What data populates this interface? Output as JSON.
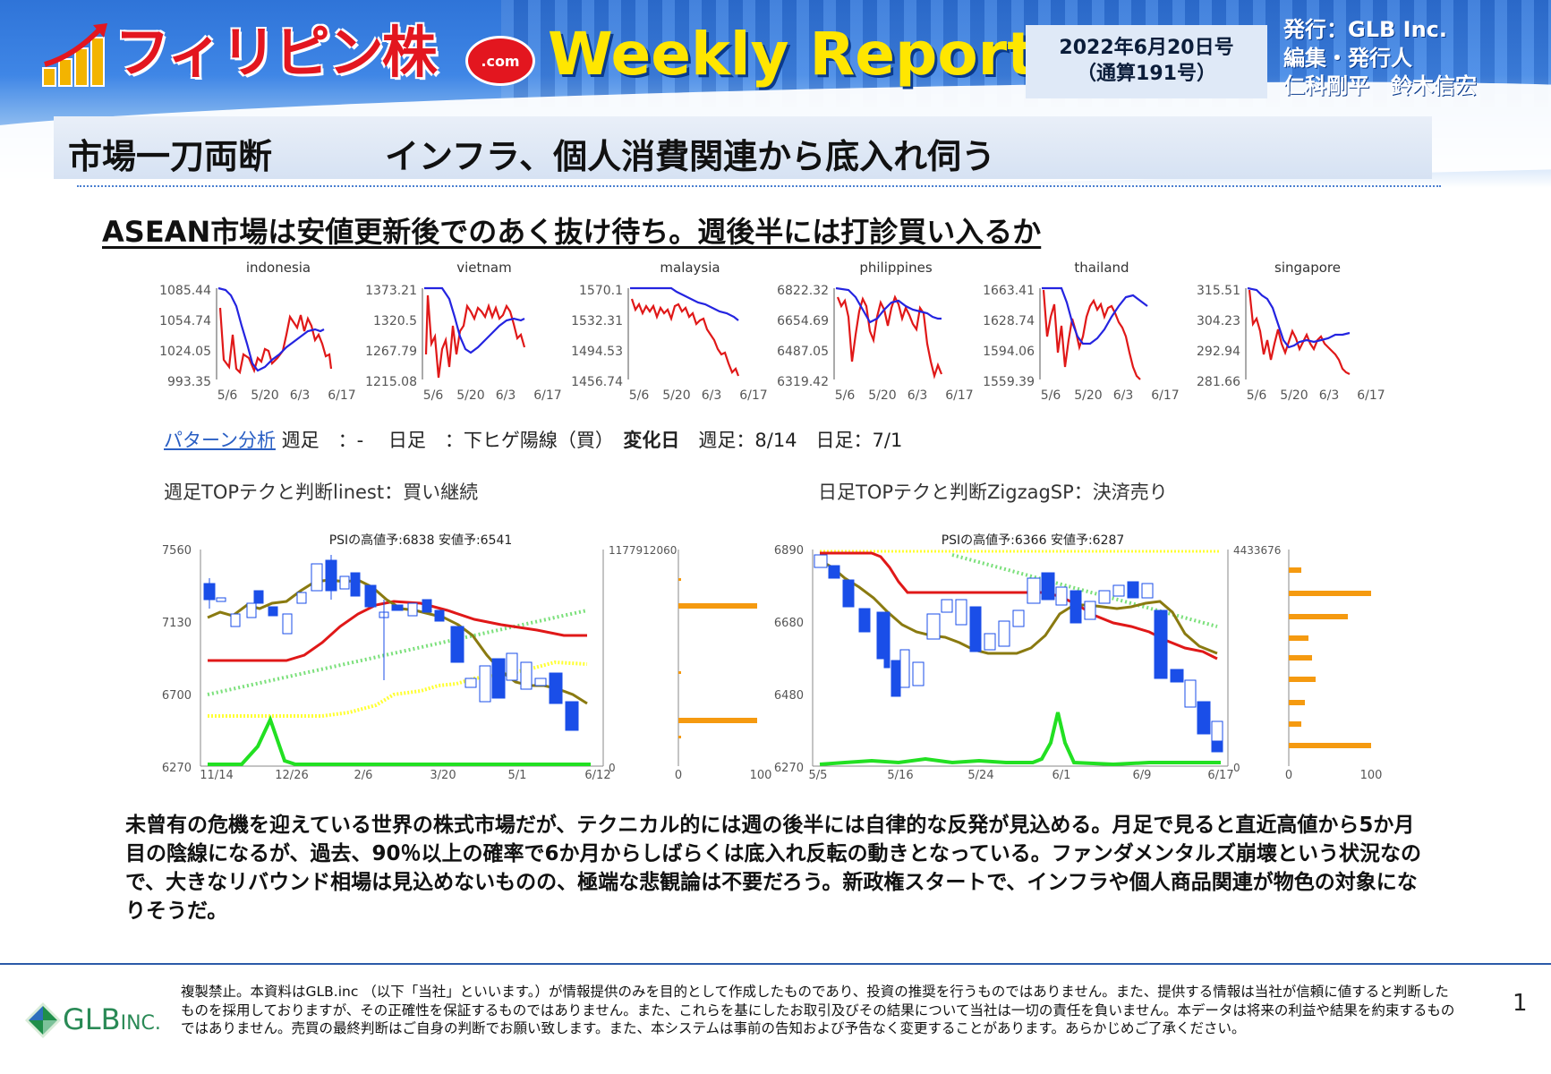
{
  "header": {
    "logo_text": "フィリピン株",
    "logo_badge": ".com",
    "report_title": "Weekly Report",
    "issue_date": "2022年6月20日号",
    "issue_number": "（通算191号）",
    "publisher_line": "発行：GLB Inc.",
    "editor_line": "編集・発行人",
    "editor_names": "仁科剛平　鈴木信宏"
  },
  "article": {
    "section_label": "市場一刀両断",
    "headline": "インフラ、個人消費関連から底入れ伺う",
    "subheadline": "ASEAN市場は安値更新後でのあく抜け待ち。週後半には打診買い入るか"
  },
  "mini_charts": [
    {
      "title": "indonesia",
      "yticks": [
        "1085.44",
        "1054.74",
        "1024.05",
        "993.35"
      ],
      "xticks": [
        "5/6",
        "5/20",
        "6/3",
        "6/17"
      ]
    },
    {
      "title": "vietnam",
      "yticks": [
        "1373.21",
        "1320.5",
        "1267.79",
        "1215.08"
      ],
      "xticks": [
        "5/6",
        "5/20",
        "6/3",
        "6/17"
      ]
    },
    {
      "title": "malaysia",
      "yticks": [
        "1570.1",
        "1532.31",
        "1494.53",
        "1456.74"
      ],
      "xticks": [
        "5/6",
        "5/20",
        "6/3",
        "6/17"
      ]
    },
    {
      "title": "philippines",
      "yticks": [
        "6822.32",
        "6654.69",
        "6487.05",
        "6319.42"
      ],
      "xticks": [
        "5/6",
        "5/20",
        "6/3",
        "6/17"
      ]
    },
    {
      "title": "thailand",
      "yticks": [
        "1663.41",
        "1628.74",
        "1594.06",
        "1559.39"
      ],
      "xticks": [
        "5/6",
        "5/20",
        "6/3",
        "6/17"
      ]
    },
    {
      "title": "singapore",
      "yticks": [
        "315.51",
        "304.23",
        "292.94",
        "281.66"
      ],
      "xticks": [
        "5/6",
        "5/20",
        "6/3",
        "6/17"
      ]
    }
  ],
  "pattern": {
    "link_text": "パターン分析",
    "weekly": " 週足　：-　 日足　：下ヒゲ陽線（買）　",
    "change_label": "変化日",
    "change_values": "　週足：8/14　日足：7/1"
  },
  "weekly_chart": {
    "label": "週足TOPテクと判断linest：買い継続",
    "title": "PSIの高値予:6838 安値予:6541",
    "yticks": [
      "7560",
      "7130",
      "6700",
      "6270"
    ],
    "xticks": [
      "11/14",
      "12/26",
      "2/6",
      "3/20",
      "5/1",
      "6/12"
    ],
    "volume_max": "1177912060",
    "volume_zero": "0",
    "hist_ticks": [
      "0",
      "100"
    ]
  },
  "daily_chart": {
    "label": "日足TOPテクと判断ZigzagSP：決済売り",
    "title": "PSIの高値予:6366 安値予:6287",
    "yticks": [
      "6890",
      "6680",
      "6480",
      "6270"
    ],
    "xticks": [
      "5/5",
      "5/16",
      "5/24",
      "6/1",
      "6/9",
      "6/17"
    ],
    "volume_max": "4433676",
    "volume_zero": "0",
    "hist_ticks": [
      "0",
      "100"
    ]
  },
  "body_text": "未曾有の危機を迎えている世界の株式市場だが、テクニカル的には週の後半には自律的な反発が見込める。月足で見ると直近高値から5か月目の陰線になるが、過去、90％以上の確率で6か月からしばらくは底入れ反転の動きとなっている。ファンダメンタルズ崩壊という状況なので、大きなリバウンド相場は見込めないものの、極端な悲観論は不要だろう。新政権スタートで、インフラや個人商品関連が物色の対象になりそうだ。",
  "footer": {
    "company_logo": "GLB",
    "company_logo_suffix": "INC.",
    "disclaimer": "複製禁止。本資料はGLB.inc （以下「当社」といいます。）が情報提供のみを目的として作成したものであり、投資の推奨を行うものではありません。また、提供する情報は当社が信頼に値すると判断したものを採用しておりますが、その正確性を保証するものではありません。また、これらを基にしたお取引及びその結果について当社は一切の責任を負いません。本データは将来の利益や結果を約束するものではありません。売買の最終判断はご自身の判断でお願い致します。また、本システムは事前の告知および予告なく変更することがあります。あらかじめご了承ください。",
    "page_number": "1"
  },
  "colors": {
    "banner_blue": "#2f74d8",
    "title_yellow": "#ffe600",
    "logo_red": "#e3161f",
    "price_blue": "#2424e0",
    "price_red": "#e01818",
    "candle_blue": "#1a4ee8",
    "ma_olive": "#8a7a10",
    "volume_green": "#22e022",
    "hist_orange": "#f59a10"
  }
}
